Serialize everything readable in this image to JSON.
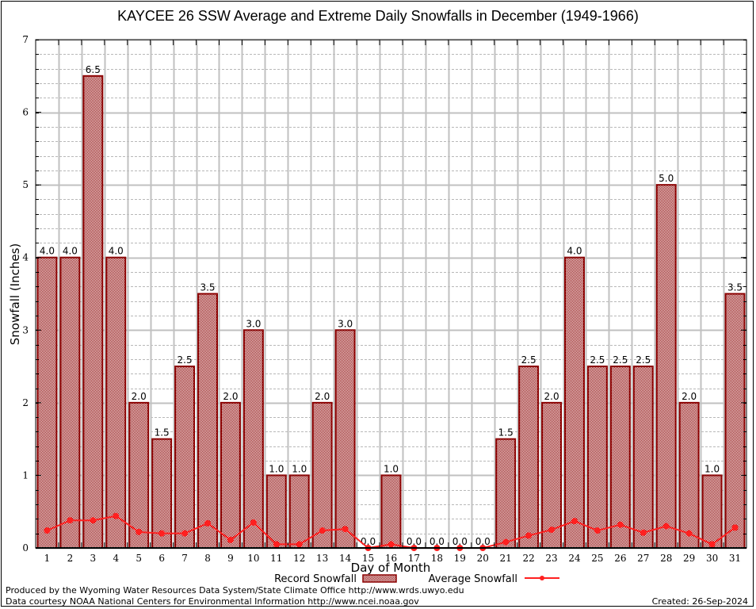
{
  "chart_data": {
    "type": "bar",
    "title": "KAYCEE 26 SSW Average and Extreme Daily Snowfalls in December (1949-1966)",
    "xlabel": "Day of Month",
    "ylabel": "Snowfall (Inches)",
    "ylim": [
      0,
      7
    ],
    "yticks": [
      "0",
      "1",
      "2",
      "3",
      "4",
      "5",
      "6",
      "7"
    ],
    "grid": true,
    "categories": [
      "1",
      "2",
      "3",
      "4",
      "5",
      "6",
      "7",
      "8",
      "9",
      "10",
      "11",
      "12",
      "13",
      "14",
      "15",
      "16",
      "17",
      "18",
      "19",
      "20",
      "21",
      "22",
      "23",
      "24",
      "25",
      "26",
      "27",
      "28",
      "29",
      "30",
      "31"
    ],
    "series": [
      {
        "name": "Record Snowfall",
        "type": "bar",
        "color": "#8b0000",
        "values": [
          4.0,
          4.0,
          6.5,
          4.0,
          2.0,
          1.5,
          2.5,
          3.5,
          2.0,
          3.0,
          1.0,
          1.0,
          2.0,
          3.0,
          0.0,
          1.0,
          0.0,
          0.0,
          0.0,
          0.0,
          1.5,
          2.5,
          2.0,
          4.0,
          2.5,
          2.5,
          2.5,
          5.0,
          2.0,
          1.0,
          3.5
        ],
        "labels": [
          "4.0",
          "4.0",
          "6.5",
          "4.0",
          "2.0",
          "1.5",
          "2.5",
          "3.5",
          "2.0",
          "3.0",
          "1.0",
          "1.0",
          "2.0",
          "3.0",
          "0.0",
          "1.0",
          "0.0",
          "0.0",
          "0.0",
          "0.0",
          "1.5",
          "2.5",
          "2.0",
          "4.0",
          "2.5",
          "2.5",
          "2.5",
          "5.0",
          "2.0",
          "1.0",
          "3.5"
        ]
      },
      {
        "name": "Average Snowfall",
        "type": "line",
        "color": "#ff2020",
        "values": [
          0.24,
          0.38,
          0.38,
          0.44,
          0.22,
          0.2,
          0.2,
          0.34,
          0.11,
          0.35,
          0.05,
          0.05,
          0.24,
          0.26,
          0.0,
          0.05,
          0.0,
          0.0,
          0.0,
          0.0,
          0.08,
          0.17,
          0.25,
          0.37,
          0.24,
          0.32,
          0.21,
          0.3,
          0.2,
          0.05,
          0.28
        ]
      }
    ],
    "legend": "bottom-center"
  },
  "footer": {
    "line1": "Produced by the Wyoming Water Resources Data System/State Climate Office http://www.wrds.uwyo.edu",
    "line2": "Data courtesy NOAA National Centers for Environmental Information http://www.ncei.noaa.gov",
    "created": "Created: 26-Sep-2024"
  }
}
